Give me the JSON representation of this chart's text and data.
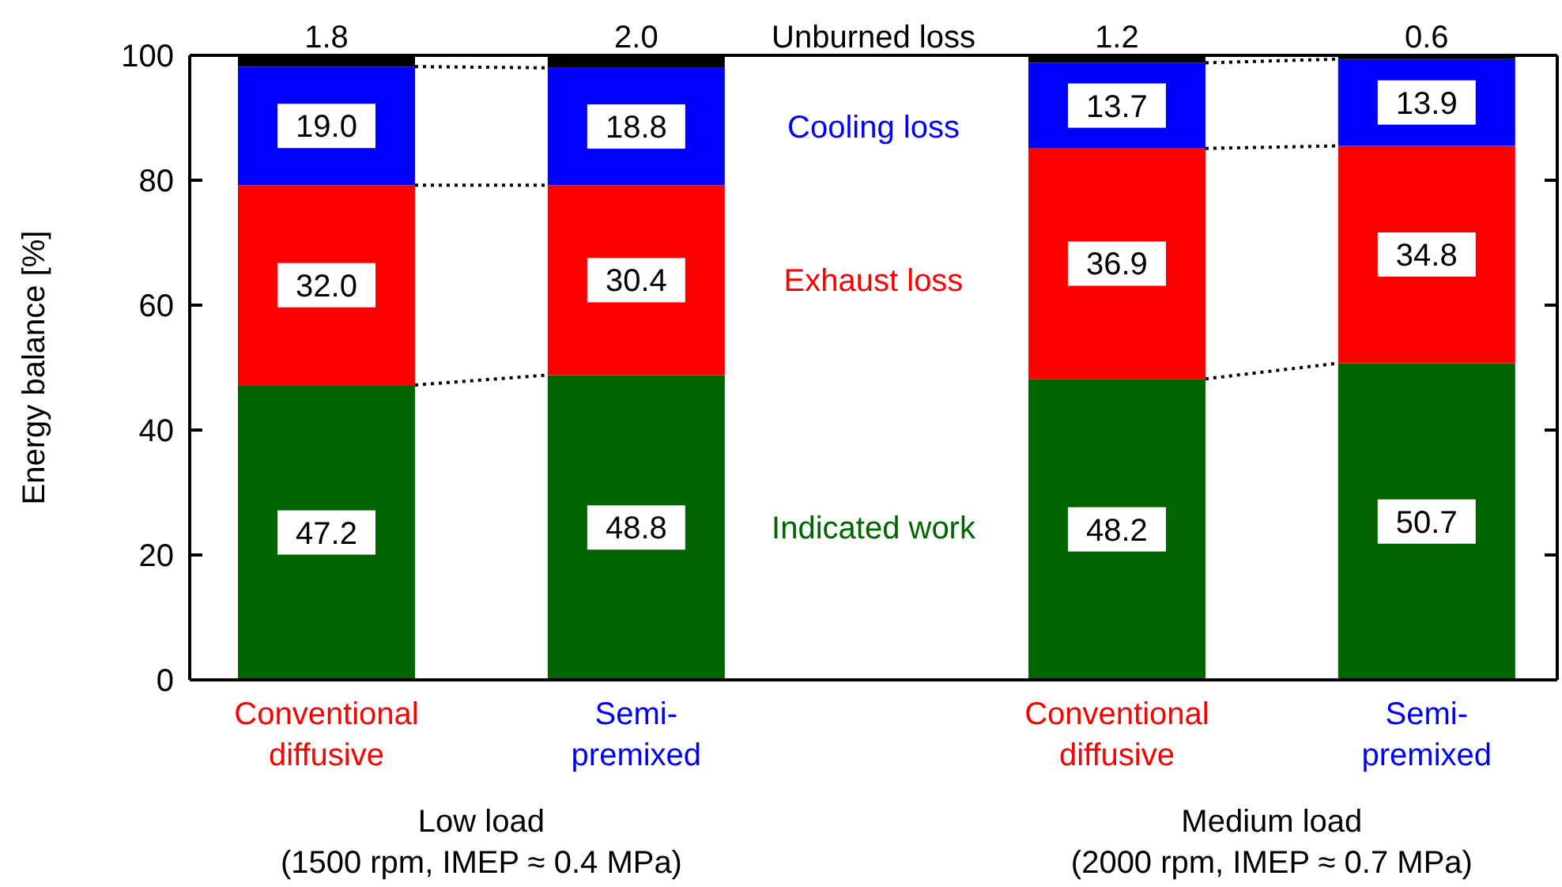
{
  "chart_data": {
    "type": "bar",
    "stacked": true,
    "ylabel": "Energy balance [%]",
    "categories": [
      "Conventional\ndiffusive",
      "Semi-\npremixed",
      "Conventional\ndiffusive",
      "Semi-\npremixed"
    ],
    "series": [
      {
        "name": "Indicated work",
        "color": "#006400",
        "values": [
          47.2,
          48.8,
          48.2,
          50.7
        ],
        "value_labels": [
          "47.2",
          "48.8",
          "48.2",
          "50.7"
        ]
      },
      {
        "name": "Exhaust loss",
        "color": "#ff0000",
        "values": [
          32.0,
          30.4,
          36.9,
          34.8
        ],
        "value_labels": [
          "32.0",
          "30.4",
          "36.9",
          "34.8"
        ]
      },
      {
        "name": "Cooling loss",
        "color": "#0000ff",
        "values": [
          19.0,
          18.8,
          13.7,
          13.9
        ],
        "value_labels": [
          "19.0",
          "18.8",
          "13.7",
          "13.9"
        ]
      },
      {
        "name": "Unburned loss",
        "color": "#000000",
        "values": [
          1.8,
          2.0,
          1.2,
          0.6
        ],
        "value_labels": [
          "1.8",
          "2.0",
          "1.2",
          "0.6"
        ]
      }
    ],
    "ylim": [
      0,
      100
    ],
    "yticks": [
      0,
      20,
      40,
      60,
      80,
      100
    ],
    "annotations": [
      "Low load\n(1500 rpm, IMEP ≈ 0.4 MPa)",
      "Medium load\n(2000 rpm, IMEP ≈ 0.7 MPa)"
    ]
  }
}
